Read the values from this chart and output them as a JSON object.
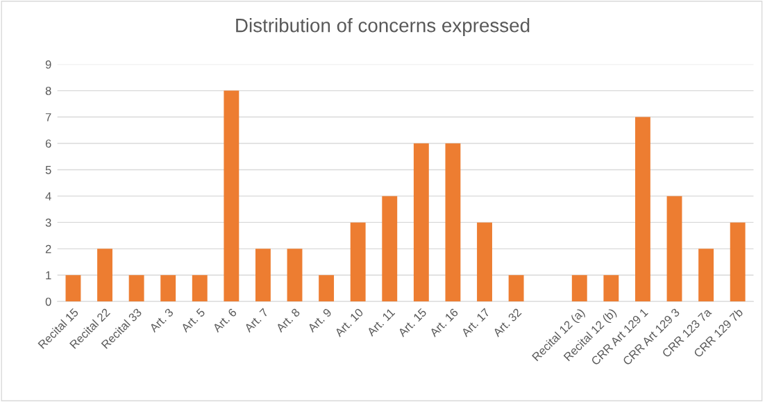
{
  "chart_data": {
    "type": "bar",
    "title": "Distribution of concerns expressed",
    "categories": [
      "Recital 15",
      "Recital 22",
      "Recital 33",
      "Art. 3",
      "Art. 5",
      "Art. 6",
      "Art. 7",
      "Art. 8",
      "Art. 9",
      "Art. 10",
      "Art. 11",
      "Art. 15",
      "Art. 16",
      "Art. 17",
      "Art. 32",
      null,
      "Recital 12 (a)",
      "Recital 12 (b)",
      "CRR Art 129 1",
      "CRR Art 129 3",
      "CRR 123 7a",
      "CRR 129 7b"
    ],
    "values": [
      1,
      2,
      1,
      1,
      1,
      8,
      2,
      2,
      1,
      3,
      4,
      6,
      6,
      3,
      1,
      null,
      1,
      1,
      7,
      4,
      2,
      3
    ],
    "color": "#ed7d31",
    "ylim": [
      0,
      9
    ],
    "yticks": [
      0,
      1,
      2,
      3,
      4,
      5,
      6,
      7,
      8,
      9
    ],
    "grid": "y",
    "legend": false
  }
}
